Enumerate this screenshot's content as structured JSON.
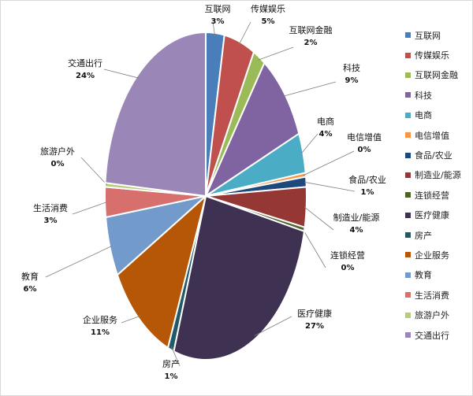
{
  "chart_data": {
    "type": "pie",
    "title": "",
    "legend_position": "right",
    "slices": [
      {
        "label": "互联网",
        "value": 3,
        "value_label": "3%",
        "color": "#4a7ebb"
      },
      {
        "label": "传媒娱乐",
        "value": 5,
        "value_label": "5%",
        "color": "#c0504d"
      },
      {
        "label": "互联网金融",
        "value": 2,
        "value_label": "2%",
        "color": "#9bbb59"
      },
      {
        "label": "科技",
        "value": 9,
        "value_label": "9%",
        "color": "#8064a2"
      },
      {
        "label": "电商",
        "value": 4,
        "value_label": "4%",
        "color": "#4bacc6"
      },
      {
        "label": "电信增值",
        "value": 0,
        "value_label": "0%",
        "color": "#f79646"
      },
      {
        "label": "食品/农业",
        "value": 1,
        "value_label": "1%",
        "color": "#1f497d"
      },
      {
        "label": "制造业/能源",
        "value": 4,
        "value_label": "4%",
        "color": "#953735"
      },
      {
        "label": "连锁经营",
        "value": 0,
        "value_label": "0%",
        "color": "#4f6228"
      },
      {
        "label": "医疗健康",
        "value": 27,
        "value_label": "27%",
        "color": "#3f3151"
      },
      {
        "label": "房产",
        "value": 1,
        "value_label": "1%",
        "color": "#215968"
      },
      {
        "label": "企业服务",
        "value": 11,
        "value_label": "11%",
        "color": "#b65708"
      },
      {
        "label": "教育",
        "value": 6,
        "value_label": "6%",
        "color": "#729aca"
      },
      {
        "label": "生活消费",
        "value": 3,
        "value_label": "3%",
        "color": "#d7706d"
      },
      {
        "label": "旅游户外",
        "value": 0,
        "value_label": "0%",
        "color": "#b3cc80"
      },
      {
        "label": "交通出行",
        "value": 24,
        "value_label": "24%",
        "color": "#9a87b8"
      }
    ]
  }
}
